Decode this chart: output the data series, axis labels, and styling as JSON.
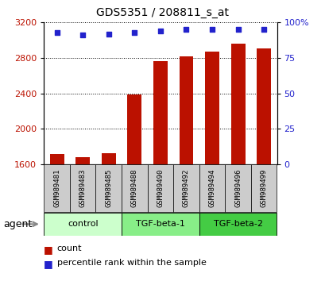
{
  "title": "GDS5351 / 208811_s_at",
  "samples": [
    "GSM989481",
    "GSM989483",
    "GSM989485",
    "GSM989488",
    "GSM989490",
    "GSM989492",
    "GSM989494",
    "GSM989496",
    "GSM989499"
  ],
  "counts": [
    1720,
    1680,
    1730,
    2390,
    2760,
    2820,
    2870,
    2960,
    2910
  ],
  "percentile_ranks": [
    93,
    91,
    92,
    93,
    94,
    95,
    95,
    95,
    95
  ],
  "groups": [
    {
      "label": "control",
      "start": 0,
      "end": 3,
      "color": "#ccffcc"
    },
    {
      "label": "TGF-beta-1",
      "start": 3,
      "end": 6,
      "color": "#88ee88"
    },
    {
      "label": "TGF-beta-2",
      "start": 6,
      "end": 9,
      "color": "#44cc44"
    }
  ],
  "bar_color": "#bb1100",
  "dot_color": "#2222cc",
  "ylim_left": [
    1600,
    3200
  ],
  "ylim_right": [
    0,
    100
  ],
  "yticks_left": [
    1600,
    2000,
    2400,
    2800,
    3200
  ],
  "yticks_right": [
    0,
    25,
    50,
    75,
    100
  ],
  "left_tick_color": "#bb1100",
  "right_tick_color": "#2222cc",
  "sample_bg_color": "#cccccc",
  "bg_color": "#ffffff",
  "bar_width": 0.55
}
